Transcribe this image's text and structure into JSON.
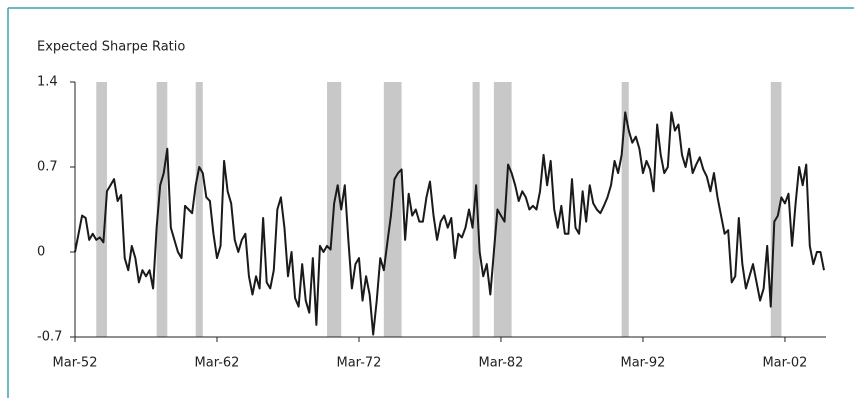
{
  "chart_data": {
    "type": "line",
    "title": "Expected Sharpe Ratio",
    "x": [
      "Mar-52",
      "Jun-52",
      "Sep-52",
      "Dec-52",
      "Mar-53",
      "Jun-53",
      "Sep-53",
      "Dec-53",
      "Mar-54",
      "Jun-54",
      "Sep-54",
      "Dec-54",
      "Mar-55",
      "Jun-55",
      "Sep-55",
      "Dec-55",
      "Mar-56",
      "Jun-56",
      "Sep-56",
      "Dec-56",
      "Mar-57",
      "Jun-57",
      "Sep-57",
      "Dec-57",
      "Mar-58",
      "Jun-58",
      "Sep-58",
      "Dec-58",
      "Mar-59",
      "Jun-59",
      "Sep-59",
      "Dec-59",
      "Mar-60",
      "Jun-60",
      "Sep-60",
      "Dec-60",
      "Mar-61",
      "Jun-61",
      "Sep-61",
      "Dec-61",
      "Mar-62",
      "Jun-62",
      "Sep-62",
      "Dec-62",
      "Mar-63",
      "Jun-63",
      "Sep-63",
      "Dec-63",
      "Mar-64",
      "Jun-64",
      "Sep-64",
      "Dec-64",
      "Mar-65",
      "Jun-65",
      "Sep-65",
      "Dec-65",
      "Mar-66",
      "Jun-66",
      "Sep-66",
      "Dec-66",
      "Mar-67",
      "Jun-67",
      "Sep-67",
      "Dec-67",
      "Mar-68",
      "Jun-68",
      "Sep-68",
      "Dec-68",
      "Mar-69",
      "Jun-69",
      "Sep-69",
      "Dec-69",
      "Mar-70",
      "Jun-70",
      "Sep-70",
      "Dec-70",
      "Mar-71",
      "Jun-71",
      "Sep-71",
      "Dec-71",
      "Mar-72",
      "Jun-72",
      "Sep-72",
      "Dec-72",
      "Mar-73",
      "Jun-73",
      "Sep-73",
      "Dec-73",
      "Mar-74",
      "Jun-74",
      "Sep-74",
      "Dec-74",
      "Mar-75",
      "Jun-75",
      "Sep-75",
      "Dec-75",
      "Mar-76",
      "Jun-76",
      "Sep-76",
      "Dec-76",
      "Mar-77",
      "Jun-77",
      "Sep-77",
      "Dec-77",
      "Mar-78",
      "Jun-78",
      "Sep-78",
      "Dec-78",
      "Mar-79",
      "Jun-79",
      "Sep-79",
      "Dec-79",
      "Mar-80",
      "Jun-80",
      "Sep-80",
      "Dec-80",
      "Mar-81",
      "Jun-81",
      "Sep-81",
      "Dec-81",
      "Mar-82",
      "Jun-82",
      "Sep-82",
      "Dec-82",
      "Mar-83",
      "Jun-83",
      "Sep-83",
      "Dec-83",
      "Mar-84",
      "Jun-84",
      "Sep-84",
      "Dec-84",
      "Mar-85",
      "Jun-85",
      "Sep-85",
      "Dec-85",
      "Mar-86",
      "Jun-86",
      "Sep-86",
      "Dec-86",
      "Mar-87",
      "Jun-87",
      "Sep-87",
      "Dec-87",
      "Mar-88",
      "Jun-88",
      "Sep-88",
      "Dec-88",
      "Mar-89",
      "Jun-89",
      "Sep-89",
      "Dec-89",
      "Mar-90",
      "Jun-90",
      "Sep-90",
      "Dec-90",
      "Mar-91",
      "Jun-91",
      "Sep-91",
      "Dec-91",
      "Mar-92",
      "Jun-92",
      "Sep-92",
      "Dec-92",
      "Mar-93",
      "Jun-93",
      "Sep-93",
      "Dec-93",
      "Mar-94",
      "Jun-94",
      "Sep-94",
      "Dec-94",
      "Mar-95",
      "Jun-95",
      "Sep-95",
      "Dec-95",
      "Mar-96",
      "Jun-96",
      "Sep-96",
      "Dec-96",
      "Mar-97",
      "Jun-97",
      "Sep-97",
      "Dec-97",
      "Mar-98",
      "Jun-98",
      "Sep-98",
      "Dec-98",
      "Mar-99",
      "Jun-99",
      "Sep-99",
      "Dec-99",
      "Mar-00",
      "Jun-00",
      "Sep-00",
      "Dec-00",
      "Mar-01",
      "Jun-01",
      "Sep-01",
      "Dec-01",
      "Mar-02",
      "Jun-02",
      "Sep-02",
      "Dec-02",
      "Mar-03",
      "Jun-03",
      "Sep-03",
      "Dec-03",
      "Mar-04",
      "Jun-04",
      "Sep-04",
      "Dec-04"
    ],
    "series": [
      {
        "color": "#1a1a1a",
        "values": [
          0.0,
          0.15,
          0.3,
          0.28,
          0.1,
          0.15,
          0.1,
          0.12,
          0.08,
          0.5,
          0.55,
          0.6,
          0.42,
          0.47,
          -0.05,
          -0.15,
          0.05,
          -0.05,
          -0.25,
          -0.15,
          -0.2,
          -0.15,
          -0.3,
          0.2,
          0.55,
          0.65,
          0.85,
          0.2,
          0.1,
          0.0,
          -0.05,
          0.38,
          0.35,
          0.32,
          0.55,
          0.7,
          0.65,
          0.45,
          0.42,
          0.15,
          -0.05,
          0.05,
          0.75,
          0.5,
          0.4,
          0.1,
          0.0,
          0.1,
          0.15,
          -0.2,
          -0.35,
          -0.2,
          -0.3,
          0.28,
          -0.25,
          -0.3,
          -0.15,
          0.35,
          0.45,
          0.2,
          -0.2,
          0.0,
          -0.38,
          -0.45,
          -0.1,
          -0.4,
          -0.5,
          -0.05,
          -0.6,
          0.05,
          0.0,
          0.05,
          0.02,
          0.4,
          0.55,
          0.35,
          0.55,
          0.1,
          -0.3,
          -0.1,
          -0.05,
          -0.4,
          -0.2,
          -0.35,
          -0.68,
          -0.4,
          -0.05,
          -0.15,
          0.08,
          0.3,
          0.6,
          0.65,
          0.68,
          0.1,
          0.48,
          0.3,
          0.35,
          0.25,
          0.25,
          0.45,
          0.58,
          0.3,
          0.1,
          0.25,
          0.3,
          0.2,
          0.28,
          -0.05,
          0.15,
          0.12,
          0.2,
          0.35,
          0.2,
          0.55,
          0.0,
          -0.2,
          -0.1,
          -0.35,
          0.0,
          0.35,
          0.3,
          0.25,
          0.72,
          0.65,
          0.55,
          0.42,
          0.5,
          0.45,
          0.35,
          0.38,
          0.35,
          0.5,
          0.8,
          0.55,
          0.75,
          0.35,
          0.2,
          0.38,
          0.15,
          0.15,
          0.6,
          0.2,
          0.15,
          0.5,
          0.25,
          0.55,
          0.4,
          0.35,
          0.32,
          0.38,
          0.45,
          0.55,
          0.75,
          0.65,
          0.8,
          1.15,
          1.0,
          0.9,
          0.95,
          0.85,
          0.65,
          0.75,
          0.68,
          0.5,
          1.05,
          0.8,
          0.65,
          0.7,
          1.15,
          1.0,
          1.05,
          0.8,
          0.7,
          0.85,
          0.65,
          0.72,
          0.78,
          0.68,
          0.62,
          0.5,
          0.65,
          0.45,
          0.3,
          0.15,
          0.18,
          -0.25,
          -0.2,
          0.28,
          -0.1,
          -0.3,
          -0.2,
          -0.1,
          -0.25,
          -0.4,
          -0.3,
          0.05,
          -0.45,
          0.25,
          0.3,
          0.45,
          0.4,
          0.48,
          0.05,
          0.4,
          0.7,
          0.55,
          0.72,
          0.05,
          -0.1,
          0.0,
          0.0,
          -0.15
        ]
      }
    ],
    "recessions": [
      [
        "Sep-53",
        "Jun-54"
      ],
      [
        "Dec-57",
        "Sep-58"
      ],
      [
        "Sep-60",
        "Mar-61"
      ],
      [
        "Dec-69",
        "Dec-70"
      ],
      [
        "Dec-73",
        "Mar-75"
      ],
      [
        "Mar-80",
        "Sep-80"
      ],
      [
        "Sep-81",
        "Dec-82"
      ],
      [
        "Sep-90",
        "Mar-91"
      ],
      [
        "Mar-01",
        "Dec-01"
      ]
    ],
    "recession_color": "#c8c8c8",
    "ylim": [
      -0.7,
      1.4
    ],
    "yticks": [
      -0.7,
      0,
      0.7,
      1.4
    ],
    "xticks": [
      "Mar-52",
      "Mar-62",
      "Mar-72",
      "Mar-82",
      "Mar-92",
      "Mar-02"
    ]
  }
}
